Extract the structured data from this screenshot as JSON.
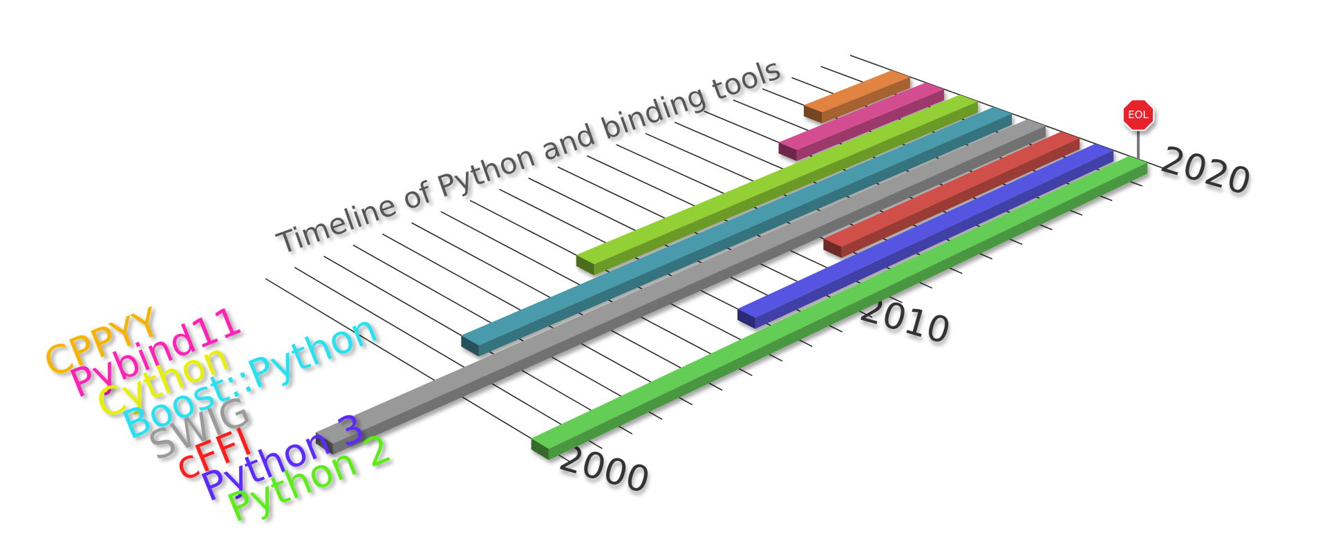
{
  "chart_data": {
    "type": "timeline",
    "title": "Timeline of Python and binding tools",
    "series": [
      {
        "name": "CPPYY",
        "color": "#c4733a",
        "label_color": "#f5b400",
        "values": [
          2017,
          2020
        ]
      },
      {
        "name": "Pybind11",
        "color": "#b8437e",
        "label_color": "#ff20b4",
        "values": [
          2015,
          2020
        ]
      },
      {
        "name": "Cython",
        "color": "#7fb52e",
        "label_color": "#e6f000",
        "values": [
          2007,
          2020
        ]
      },
      {
        "name": "Boost::Python",
        "color": "#3f8795",
        "label_color": "#25e2f0",
        "values": [
          2002,
          2020
        ]
      },
      {
        "name": "SWIG",
        "color": "#858585",
        "label_color": "#9a9a9a",
        "values": [
          1996,
          2020
        ]
      },
      {
        "name": "cFFI",
        "color": "#b5453f",
        "label_color": "#ff1c1c",
        "values": [
          2012,
          2020
        ]
      },
      {
        "name": "Python 3",
        "color": "#4a4ac4",
        "label_color": "#5a2cff",
        "values": [
          2008,
          2020
        ]
      },
      {
        "name": "Python 2",
        "color": "#57b24a",
        "label_color": "#5aee12",
        "values": [
          2000,
          2020
        ]
      }
    ],
    "xticks": [
      2000,
      2010,
      2020
    ],
    "xminorticks": [
      2001,
      2002,
      2003,
      2004,
      2005,
      2006,
      2007,
      2008,
      2009,
      2011,
      2012,
      2013,
      2014,
      2015,
      2016,
      2017,
      2018,
      2019
    ],
    "annotation": "EOL"
  }
}
